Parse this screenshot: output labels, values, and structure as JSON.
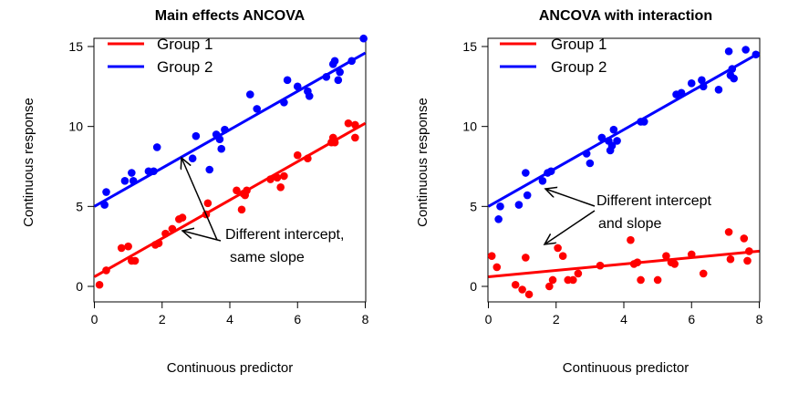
{
  "chart_data": [
    {
      "type": "scatter",
      "title": "Main effects ANCOVA",
      "xlabel": "Continuous predictor",
      "ylabel": "Continuous response",
      "xlim": [
        0,
        8
      ],
      "ylim": [
        0,
        15
      ],
      "x_ticks": [
        0,
        2,
        4,
        6,
        8
      ],
      "y_ticks": [
        0,
        5,
        10,
        15
      ],
      "legend_position": "top-left",
      "grid": false,
      "series": [
        {
          "name": "Group 1",
          "color": "#ff0000",
          "fit_line": {
            "intercept": 0.6,
            "slope": 1.2
          },
          "points": [
            [
              0.15,
              0.1
            ],
            [
              0.35,
              1.0
            ],
            [
              0.8,
              2.4
            ],
            [
              1.0,
              2.5
            ],
            [
              1.1,
              1.6
            ],
            [
              1.2,
              1.6
            ],
            [
              1.8,
              2.6
            ],
            [
              1.9,
              2.7
            ],
            [
              2.1,
              3.3
            ],
            [
              2.3,
              3.6
            ],
            [
              2.5,
              4.2
            ],
            [
              2.6,
              4.3
            ],
            [
              3.3,
              4.5
            ],
            [
              3.35,
              5.2
            ],
            [
              4.2,
              6.0
            ],
            [
              4.35,
              4.8
            ],
            [
              4.4,
              5.8
            ],
            [
              4.45,
              5.7
            ],
            [
              4.5,
              6.0
            ],
            [
              5.2,
              6.7
            ],
            [
              5.4,
              6.8
            ],
            [
              5.5,
              6.2
            ],
            [
              5.6,
              6.9
            ],
            [
              6.0,
              8.2
            ],
            [
              6.3,
              8.0
            ],
            [
              7.0,
              9.0
            ],
            [
              7.05,
              9.3
            ],
            [
              7.1,
              9.0
            ],
            [
              7.5,
              10.2
            ],
            [
              7.7,
              10.1
            ],
            [
              7.7,
              9.3
            ]
          ]
        },
        {
          "name": "Group 2",
          "color": "#0000ff",
          "fit_line": {
            "intercept": 5.0,
            "slope": 1.2
          },
          "points": [
            [
              0.3,
              5.1
            ],
            [
              0.35,
              5.9
            ],
            [
              0.9,
              6.6
            ],
            [
              1.1,
              7.1
            ],
            [
              1.15,
              6.6
            ],
            [
              1.6,
              7.2
            ],
            [
              1.75,
              7.2
            ],
            [
              1.85,
              8.7
            ],
            [
              2.9,
              8.0
            ],
            [
              3.0,
              9.4
            ],
            [
              3.4,
              7.3
            ],
            [
              3.6,
              9.5
            ],
            [
              3.7,
              9.2
            ],
            [
              3.75,
              8.6
            ],
            [
              3.85,
              9.8
            ],
            [
              4.6,
              12.0
            ],
            [
              4.8,
              11.1
            ],
            [
              5.6,
              11.5
            ],
            [
              5.7,
              12.9
            ],
            [
              6.0,
              12.5
            ],
            [
              6.3,
              12.2
            ],
            [
              6.35,
              11.9
            ],
            [
              6.85,
              13.1
            ],
            [
              7.05,
              13.9
            ],
            [
              7.1,
              14.1
            ],
            [
              7.2,
              12.9
            ],
            [
              7.25,
              13.4
            ],
            [
              7.6,
              14.1
            ],
            [
              7.95,
              15.5
            ]
          ]
        }
      ],
      "annotation": {
        "lines": [
          "Different intercept,",
          "same slope"
        ]
      }
    },
    {
      "type": "scatter",
      "title": "ANCOVA with interaction",
      "xlabel": "Continuous predictor",
      "ylabel": "Continuous response",
      "xlim": [
        0,
        8
      ],
      "ylim": [
        0,
        15
      ],
      "x_ticks": [
        0,
        2,
        4,
        6,
        8
      ],
      "y_ticks": [
        0,
        5,
        10,
        15
      ],
      "legend_position": "top-left",
      "grid": false,
      "series": [
        {
          "name": "Group 1",
          "color": "#ff0000",
          "fit_line": {
            "intercept": 0.6,
            "slope": 0.2
          },
          "points": [
            [
              0.1,
              1.9
            ],
            [
              0.25,
              1.2
            ],
            [
              0.8,
              0.1
            ],
            [
              1.0,
              -0.2
            ],
            [
              1.1,
              1.8
            ],
            [
              1.2,
              -0.5
            ],
            [
              1.8,
              0.0
            ],
            [
              1.9,
              0.4
            ],
            [
              2.05,
              2.4
            ],
            [
              2.2,
              1.9
            ],
            [
              2.35,
              0.4
            ],
            [
              2.5,
              0.4
            ],
            [
              2.65,
              0.8
            ],
            [
              3.3,
              1.3
            ],
            [
              4.2,
              2.9
            ],
            [
              4.3,
              1.4
            ],
            [
              4.4,
              1.5
            ],
            [
              4.5,
              0.4
            ],
            [
              5.0,
              0.4
            ],
            [
              5.25,
              1.9
            ],
            [
              5.4,
              1.5
            ],
            [
              5.5,
              1.4
            ],
            [
              6.0,
              2.0
            ],
            [
              6.35,
              0.8
            ],
            [
              7.1,
              3.4
            ],
            [
              7.15,
              1.7
            ],
            [
              7.55,
              3.0
            ],
            [
              7.65,
              1.6
            ],
            [
              7.7,
              2.2
            ]
          ]
        },
        {
          "name": "Group 2",
          "color": "#0000ff",
          "fit_line": {
            "intercept": 5.0,
            "slope": 1.2
          },
          "points": [
            [
              0.3,
              4.2
            ],
            [
              0.35,
              5.0
            ],
            [
              0.9,
              5.1
            ],
            [
              1.1,
              7.1
            ],
            [
              1.15,
              5.7
            ],
            [
              1.6,
              6.6
            ],
            [
              1.75,
              7.1
            ],
            [
              1.85,
              7.2
            ],
            [
              2.9,
              8.3
            ],
            [
              3.0,
              7.7
            ],
            [
              3.35,
              9.3
            ],
            [
              3.55,
              9.1
            ],
            [
              3.6,
              8.5
            ],
            [
              3.65,
              8.8
            ],
            [
              3.7,
              9.8
            ],
            [
              3.8,
              9.1
            ],
            [
              4.5,
              10.3
            ],
            [
              4.6,
              10.3
            ],
            [
              5.55,
              12.0
            ],
            [
              5.7,
              12.1
            ],
            [
              6.0,
              12.7
            ],
            [
              6.3,
              12.9
            ],
            [
              6.35,
              12.5
            ],
            [
              6.8,
              12.3
            ],
            [
              7.1,
              14.7
            ],
            [
              7.15,
              13.2
            ],
            [
              7.2,
              13.6
            ],
            [
              7.25,
              13.0
            ],
            [
              7.6,
              14.8
            ],
            [
              7.9,
              14.5
            ]
          ]
        }
      ],
      "annotation": {
        "lines": [
          "Different intercept",
          "and slope"
        ]
      }
    }
  ]
}
